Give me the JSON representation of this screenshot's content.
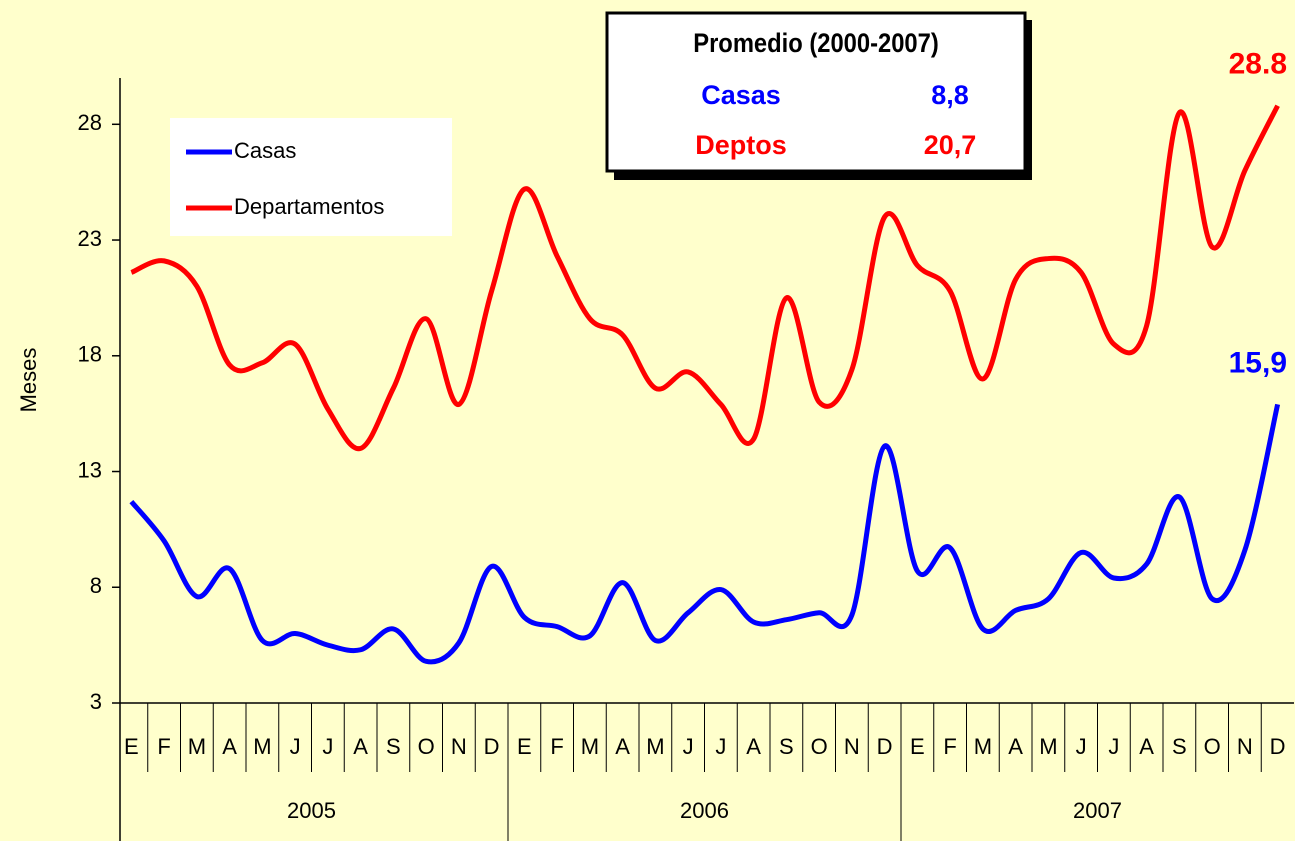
{
  "chart_data": {
    "type": "line",
    "y_label": "Meses",
    "categories": [
      "E",
      "F",
      "M",
      "A",
      "M",
      "J",
      "J",
      "A",
      "S",
      "O",
      "N",
      "D",
      "E",
      "F",
      "M",
      "A",
      "M",
      "J",
      "J",
      "A",
      "S",
      "O",
      "N",
      "D",
      "E",
      "F",
      "M",
      "A",
      "M",
      "J",
      "J",
      "A",
      "S",
      "O",
      "N",
      "D"
    ],
    "groups": [
      "2005",
      "2006",
      "2007"
    ],
    "series": [
      {
        "name": "Casas",
        "color": "#0000ff",
        "end_label": "15,9",
        "values": [
          11.7,
          10.0,
          7.6,
          8.8,
          5.7,
          6.0,
          5.5,
          5.3,
          6.2,
          4.8,
          5.6,
          8.9,
          6.7,
          6.3,
          5.9,
          8.2,
          5.7,
          6.9,
          7.9,
          6.5,
          6.6,
          6.9,
          6.8,
          14.1,
          8.7,
          9.7,
          6.2,
          7.0,
          7.5,
          9.5,
          8.4,
          9.0,
          11.9,
          7.5,
          9.6,
          15.9
        ]
      },
      {
        "name": "Departamentos",
        "color": "#ff0000",
        "end_label": "28.8",
        "values": [
          21.6,
          22.1,
          21.0,
          17.6,
          17.7,
          18.5,
          15.7,
          14.0,
          16.6,
          19.6,
          15.9,
          20.8,
          25.2,
          22.3,
          19.6,
          18.9,
          16.6,
          17.3,
          15.9,
          14.4,
          20.5,
          16.0,
          17.4,
          24.0,
          21.9,
          20.8,
          17.0,
          21.3,
          22.2,
          21.6,
          18.5,
          19.3,
          28.5,
          22.7,
          26.0,
          28.8
        ]
      }
    ],
    "ylim": [
      3,
      30
    ],
    "yticks": [
      3,
      8,
      13,
      18,
      23,
      28
    ],
    "legend": "upper left",
    "summary_box": {
      "title": "Promedio (2000-2007)",
      "rows": [
        {
          "label": "Casas",
          "value": "8,8",
          "color": "#0000ff"
        },
        {
          "label": "Deptos",
          "value": "20,7",
          "color": "#ff0000"
        }
      ]
    }
  }
}
